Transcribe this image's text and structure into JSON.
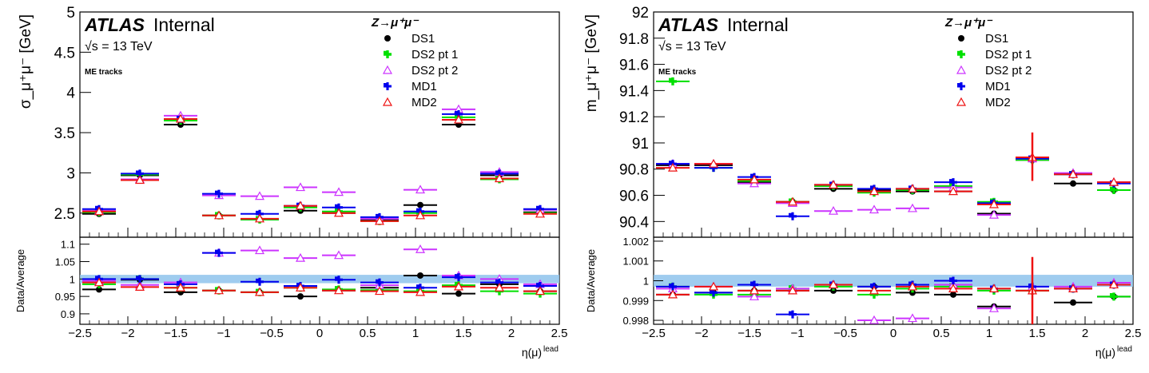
{
  "colors": {
    "DS1": "#000000",
    "DS2 pt 1": "#00e000",
    "DS2 pt 2": "#cc33ff",
    "MD1": "#0000ee",
    "MD2": "#ee1111",
    "band": "#8ec3ec"
  },
  "chart_data": [
    {
      "type": "scatter",
      "atlas_label": "ATLAS",
      "atlas_suffix": "Internal",
      "energy_label": "√s = 13 TeV",
      "tracks_label": "ME tracks",
      "legend_title": "Z→μ⁺μ⁻",
      "legend_position": "top-right",
      "ylabel": "σ_μ⁺μ⁻ [GeV]",
      "ratio_ylabel": "Data/Average",
      "xlabel": "η(μ)^lead",
      "xlim": [
        -2.5,
        2.5
      ],
      "ylim": [
        2.2,
        5.0
      ],
      "ratio_ylim": [
        0.87,
        1.12
      ],
      "x_ticks": [
        "-2.5",
        "-2",
        "-1.5",
        "-1",
        "-0.5",
        "0",
        "0.5",
        "1",
        "1.5",
        "2",
        "2.5"
      ],
      "y_ticks": [
        "2.5",
        "3",
        "3.5",
        "4",
        "4.5",
        "5"
      ],
      "ratio_ticks": [
        "0.9",
        "0.95",
        "1",
        "1.05",
        "1.1"
      ],
      "bin_edges": [
        -2.5,
        -2.1,
        -1.65,
        -1.25,
        -0.85,
        -0.4,
        0,
        0.4,
        0.85,
        1.25,
        1.65,
        2.1,
        2.5
      ],
      "x": [
        -2.3,
        -1.875,
        -1.45,
        -1.05,
        -0.625,
        -0.2,
        0.2,
        0.625,
        1.05,
        1.45,
        1.875,
        2.3
      ],
      "series": [
        {
          "name": "DS1",
          "marker": "circle",
          "values": [
            2.49,
            2.97,
            3.6,
            2.47,
            2.42,
            2.53,
            2.5,
            2.42,
            2.6,
            3.6,
            2.97,
            2.51
          ],
          "ratio": [
            0.97,
            0.998,
            0.962,
            0.967,
            0.962,
            0.95,
            0.967,
            0.975,
            1.01,
            0.958,
            0.985,
            0.965
          ]
        },
        {
          "name": "DS2 pt 1",
          "marker": "cross",
          "values": [
            2.51,
            2.98,
            3.65,
            2.47,
            2.42,
            2.57,
            2.52,
            2.4,
            2.5,
            3.69,
            2.92,
            2.5
          ],
          "ratio": [
            0.985,
            1.0,
            0.975,
            0.967,
            0.962,
            0.975,
            0.97,
            0.968,
            0.965,
            0.982,
            0.965,
            0.958
          ]
        },
        {
          "name": "DS2 pt 2",
          "marker": "triangle",
          "values": [
            2.53,
            2.92,
            3.71,
            2.72,
            2.71,
            2.82,
            2.76,
            2.43,
            2.79,
            3.79,
            3.01,
            2.54
          ],
          "ratio": [
            0.995,
            0.983,
            0.99,
            1.075,
            1.082,
            1.06,
            1.068,
            0.982,
            1.085,
            1.01,
            1.0,
            0.985
          ]
        },
        {
          "name": "MD1",
          "marker": "plus",
          "values": [
            2.55,
            2.99,
            3.67,
            2.74,
            2.49,
            2.59,
            2.57,
            2.45,
            2.52,
            3.73,
            2.99,
            2.55
          ],
          "ratio": [
            1.0,
            1.0,
            0.985,
            1.075,
            0.992,
            0.98,
            0.998,
            0.99,
            0.975,
            1.005,
            0.99,
            0.98
          ]
        },
        {
          "name": "MD2",
          "marker": "triangle-open",
          "values": [
            2.52,
            2.91,
            3.67,
            2.47,
            2.43,
            2.59,
            2.5,
            2.4,
            2.47,
            3.66,
            2.93,
            2.49
          ],
          "ratio": [
            0.99,
            0.977,
            0.975,
            0.967,
            0.962,
            0.975,
            0.967,
            0.965,
            0.962,
            0.978,
            0.975,
            0.965
          ]
        }
      ]
    },
    {
      "type": "scatter",
      "atlas_label": "ATLAS",
      "atlas_suffix": "Internal",
      "energy_label": "√s = 13 TeV",
      "tracks_label": "ME tracks",
      "legend_title": "Z→μ⁺μ⁻",
      "legend_position": "top-right",
      "ylabel": "m_μ⁺μ⁻ [GeV]",
      "ratio_ylabel": "Data/Average",
      "xlabel": "η(μ)^lead",
      "xlim": [
        -2.5,
        2.5
      ],
      "ylim": [
        90.28,
        92.0
      ],
      "ratio_ylim": [
        0.9978,
        1.0022
      ],
      "x_ticks": [
        "-2.5",
        "-2",
        "-1.5",
        "-1",
        "-0.5",
        "0",
        "0.5",
        "1",
        "1.5",
        "2",
        "2.5"
      ],
      "y_ticks": [
        "90.4",
        "90.6",
        "90.8",
        "91",
        "91.2",
        "91.4",
        "91.6",
        "91.8",
        "92"
      ],
      "ratio_ticks": [
        "0.998",
        "0.999",
        "1",
        "1.001",
        "1.002"
      ],
      "bin_edges": [
        -2.5,
        -2.1,
        -1.65,
        -1.25,
        -0.85,
        -0.4,
        0,
        0.4,
        0.85,
        1.25,
        1.65,
        2.1,
        2.5
      ],
      "x": [
        -2.3,
        -1.875,
        -1.45,
        -1.05,
        -0.625,
        -0.2,
        0.2,
        0.625,
        1.05,
        1.45,
        1.875,
        2.3
      ],
      "series": [
        {
          "name": "DS1",
          "marker": "circle",
          "values": [
            90.83,
            90.83,
            90.7,
            90.55,
            90.65,
            90.64,
            90.63,
            90.63,
            90.46,
            90.87,
            90.69,
            90.64
          ],
          "ratio": [
            0.9993,
            0.9994,
            0.9995,
            0.9995,
            0.9995,
            0.9997,
            0.9994,
            0.9993,
            0.9987,
            0.9995,
            0.9989,
            0.9992
          ]
        },
        {
          "name": "DS2 pt 1",
          "marker": "cross",
          "values": [
            91.47,
            90.81,
            90.71,
            90.55,
            90.67,
            90.62,
            90.64,
            90.67,
            90.55,
            90.87,
            90.76,
            90.64
          ],
          "ratio": [
            0.9997,
            0.9993,
            0.9993,
            0.9996,
            0.9997,
            0.9993,
            0.9996,
            0.9997,
            0.9995,
            0.9995,
            0.9996,
            0.9992
          ]
        },
        {
          "name": "DS2 pt 2",
          "marker": "triangle",
          "values": [
            90.84,
            90.84,
            90.69,
            90.54,
            90.48,
            90.49,
            90.5,
            90.66,
            90.45,
            90.88,
            90.77,
            90.7
          ],
          "ratio": [
            0.9996,
            0.9997,
            0.9992,
            0.9996,
            0.9998,
            0.998,
            0.9981,
            0.9998,
            0.9986,
            0.9997,
            0.9997,
            0.9999
          ]
        },
        {
          "name": "MD1",
          "marker": "plus",
          "values": [
            90.84,
            90.81,
            90.74,
            90.44,
            90.68,
            90.65,
            90.65,
            90.7,
            90.54,
            90.88,
            90.76,
            90.69
          ],
          "ratio": [
            0.9997,
            0.9994,
            0.9998,
            0.9983,
            0.9998,
            0.9997,
            0.9998,
            1.0,
            0.9996,
            0.9997,
            0.9996,
            0.9998
          ]
        },
        {
          "name": "MD2",
          "marker": "triangle-open",
          "values": [
            90.81,
            90.84,
            90.72,
            90.55,
            90.68,
            90.63,
            90.65,
            90.63,
            90.53,
            90.89,
            90.76,
            90.7
          ],
          "ratio": [
            0.9993,
            0.9997,
            0.9995,
            0.9995,
            0.9998,
            0.9995,
            0.9997,
            0.9996,
            0.9996,
            0.9995,
            0.9996,
            0.9998
          ]
        }
      ]
    }
  ]
}
